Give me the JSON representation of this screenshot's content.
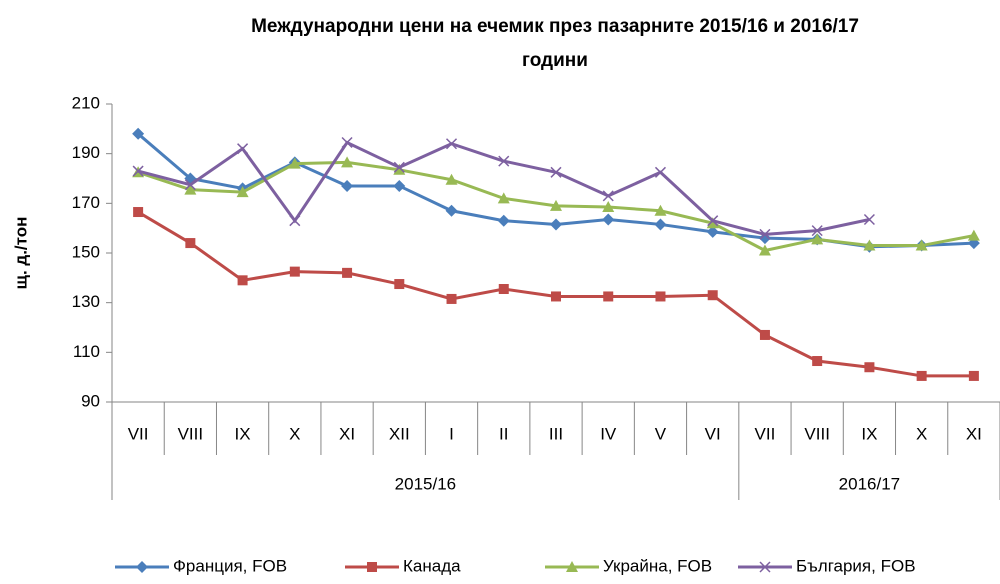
{
  "chart_data": {
    "type": "line",
    "title": [
      "Международни цени на ечемик през пазарните  2015/16 и 2016/17",
      "години"
    ],
    "y_label": "щ. д./тон",
    "groups": [
      {
        "label": "2015/16",
        "categories": [
          "VII",
          "VIII",
          "IX",
          "X",
          "XI",
          "XII",
          "I",
          "II",
          "III",
          "IV",
          "V",
          "VI"
        ]
      },
      {
        "label": "2016/17",
        "categories": [
          "VII",
          "VIII",
          "IX",
          "X",
          "XI"
        ]
      }
    ],
    "ylim": [
      90,
      210
    ],
    "yticks": [
      90,
      110,
      130,
      150,
      170,
      190,
      210
    ],
    "grid": false,
    "legend": "bottom",
    "series": [
      {
        "name": "Франция, FOB",
        "color": "#4a7ebb",
        "marker": "diamond",
        "values": [
          198,
          180,
          176,
          186.5,
          177,
          177,
          167,
          163,
          161.5,
          163.5,
          161.5,
          158.5,
          156,
          155.5,
          152.5,
          153,
          154
        ]
      },
      {
        "name": "Канада",
        "color": "#be4b48",
        "marker": "square",
        "values": [
          166.5,
          154,
          139,
          142.5,
          142,
          137.5,
          131.5,
          135.5,
          132.5,
          132.5,
          132.5,
          133,
          117,
          106.5,
          104,
          100.5,
          100.5
        ]
      },
      {
        "name": "Украйна, FOB",
        "color": "#98b954",
        "marker": "triangle",
        "values": [
          182.5,
          175.5,
          174.5,
          186,
          186.5,
          183.5,
          179.5,
          172,
          169,
          168.5,
          167,
          162,
          151,
          155.5,
          153,
          153,
          157
        ]
      },
      {
        "name": "България, FOB",
        "color": "#7d60a0",
        "marker": "x",
        "values": [
          183,
          177.5,
          192,
          163,
          194.5,
          184.5,
          194,
          187,
          182.5,
          173,
          182.5,
          163,
          157.5,
          159,
          163.5,
          null,
          null
        ]
      }
    ]
  }
}
